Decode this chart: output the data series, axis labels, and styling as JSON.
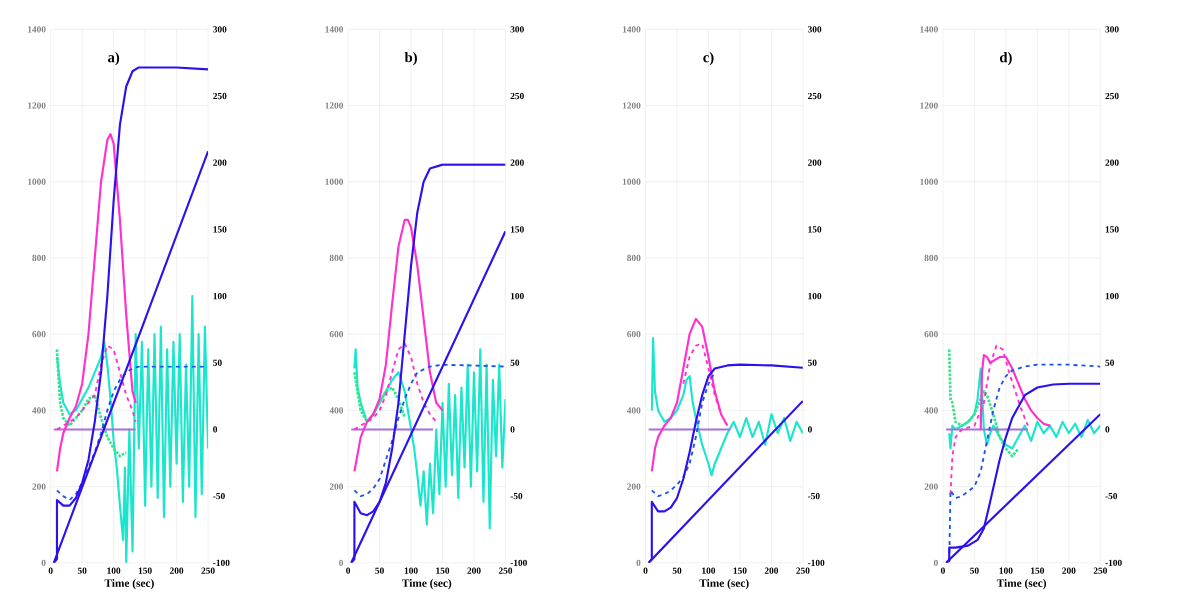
{
  "chart_data": [
    {
      "type": "line",
      "title": "a)",
      "xlabel": "Time (sec)",
      "xlim": [
        0,
        250
      ],
      "xticks": [
        0,
        50,
        100,
        150,
        200,
        250
      ],
      "ylim": [
        0,
        1400
      ],
      "yticks": [
        0,
        200,
        400,
        600,
        800,
        1000,
        1200,
        1400
      ],
      "y2lim": [
        -100,
        300
      ],
      "y2ticks": [
        -100,
        -50,
        0,
        50,
        100,
        150,
        200,
        250,
        300
      ],
      "grid": true,
      "series": [
        {
          "color": "#19e6cc",
          "line_style": "solid",
          "x": [
            10,
            15,
            20,
            30,
            40,
            50,
            60,
            70,
            80,
            85,
            90,
            95,
            100,
            105,
            110,
            115,
            118,
            120,
            125,
            130,
            135,
            140,
            145,
            150,
            155,
            160,
            165,
            170,
            175,
            180,
            185,
            190,
            195,
            200,
            205,
            210,
            215,
            220,
            225,
            230,
            235,
            240,
            245,
            250
          ],
          "values": [
            540,
            470,
            420,
            390,
            400,
            430,
            460,
            500,
            540,
            580,
            520,
            430,
            320,
            250,
            150,
            60,
            250,
            0,
            350,
            30,
            600,
            300,
            580,
            150,
            560,
            200,
            600,
            170,
            620,
            120,
            560,
            200,
            580,
            260,
            600,
            160,
            520,
            200,
            700,
            120,
            600,
            180,
            620,
            300
          ]
        },
        {
          "color": "#2ee88a",
          "line_style": "dotted",
          "x": [
            10,
            12,
            15,
            20,
            30,
            40,
            50,
            60,
            70,
            80,
            90,
            100,
            110,
            120
          ],
          "values": [
            560,
            500,
            420,
            380,
            360,
            380,
            400,
            430,
            440,
            380,
            330,
            300,
            280,
            290
          ]
        },
        {
          "color": "#a76ee0",
          "line_style": "solid",
          "x": [
            5,
            135
          ],
          "values": [
            350,
            350
          ]
        },
        {
          "color": "#ff2fd0",
          "line_style": "dashed",
          "x": [
            10,
            20,
            30,
            40,
            50,
            60,
            70,
            80,
            90,
            100,
            110,
            120,
            130,
            135
          ],
          "values": [
            350,
            360,
            370,
            380,
            400,
            420,
            440,
            520,
            570,
            560,
            500,
            440,
            400,
            370
          ]
        },
        {
          "color": "#ff2fd0",
          "line_style": "solid",
          "x": [
            10,
            15,
            20,
            30,
            40,
            50,
            60,
            70,
            80,
            90,
            95,
            100,
            110,
            120,
            130,
            135
          ],
          "values": [
            240,
            300,
            340,
            380,
            410,
            470,
            600,
            800,
            1000,
            1110,
            1125,
            1100,
            900,
            650,
            450,
            420
          ]
        },
        {
          "color": "#1a55e8",
          "line_style": "dashed",
          "x": [
            10,
            20,
            30,
            40,
            50,
            60,
            70,
            80,
            90,
            100,
            110,
            120,
            130,
            140,
            150,
            200,
            250
          ],
          "values": [
            190,
            175,
            165,
            180,
            210,
            250,
            290,
            340,
            400,
            450,
            480,
            500,
            510,
            515,
            515,
            515,
            515
          ]
        },
        {
          "color": "#2b10f0",
          "line_style": "solid",
          "x": [
            5,
            250
          ],
          "values": [
            0,
            1080
          ]
        },
        {
          "color": "#2b10f0",
          "line_style": "solid",
          "x": [
            5,
            10,
            10,
            20,
            30,
            40,
            50,
            60,
            70,
            80,
            90,
            100,
            110,
            120,
            130,
            140,
            150,
            175,
            200,
            250
          ],
          "values": [
            0,
            10,
            165,
            150,
            150,
            170,
            210,
            270,
            370,
            500,
            700,
            950,
            1150,
            1250,
            1290,
            1300,
            1300,
            1300,
            1300,
            1295
          ]
        }
      ]
    },
    {
      "type": "line",
      "title": "b)",
      "xlabel": "Time (sec)",
      "xlim": [
        0,
        250
      ],
      "xticks": [
        0,
        50,
        100,
        150,
        200,
        250
      ],
      "ylim": [
        0,
        1400
      ],
      "yticks": [
        0,
        200,
        400,
        600,
        800,
        1000,
        1200,
        1400
      ],
      "y2lim": [
        -100,
        300
      ],
      "y2ticks": [
        -100,
        -50,
        0,
        50,
        100,
        150,
        200,
        250,
        300
      ],
      "grid": true,
      "series": [
        {
          "color": "#19e6cc",
          "line_style": "solid",
          "x": [
            10,
            12,
            15,
            20,
            30,
            40,
            50,
            60,
            70,
            80,
            90,
            100,
            105,
            110,
            115,
            120,
            125,
            130,
            135,
            140,
            145,
            150,
            155,
            160,
            165,
            170,
            175,
            180,
            185,
            190,
            195,
            200,
            205,
            210,
            215,
            220,
            225,
            230,
            235,
            240,
            245,
            250
          ],
          "values": [
            510,
            560,
            460,
            420,
            370,
            390,
            420,
            450,
            480,
            500,
            450,
            350,
            300,
            230,
            150,
            240,
            100,
            260,
            130,
            350,
            180,
            420,
            200,
            470,
            230,
            440,
            170,
            460,
            250,
            520,
            200,
            500,
            240,
            560,
            160,
            520,
            90,
            480,
            280,
            520,
            250,
            430
          ]
        },
        {
          "color": "#2ee88a",
          "line_style": "dotted",
          "x": [
            10,
            15,
            20,
            30,
            40,
            50,
            60,
            70,
            80,
            90
          ],
          "values": [
            500,
            450,
            400,
            370,
            390,
            420,
            450,
            460,
            430,
            380
          ]
        },
        {
          "color": "#a76ee0",
          "line_style": "solid",
          "x": [
            5,
            135
          ],
          "values": [
            350,
            350
          ]
        },
        {
          "color": "#ff2fd0",
          "line_style": "dashed",
          "x": [
            10,
            20,
            30,
            40,
            50,
            60,
            70,
            80,
            90,
            100,
            110,
            120,
            130,
            140
          ],
          "values": [
            350,
            360,
            370,
            380,
            400,
            440,
            500,
            560,
            575,
            540,
            470,
            420,
            390,
            370
          ]
        },
        {
          "color": "#ff2fd0",
          "line_style": "solid",
          "x": [
            10,
            20,
            30,
            40,
            50,
            60,
            70,
            80,
            90,
            95,
            100,
            110,
            120,
            130,
            140,
            150
          ],
          "values": [
            240,
            330,
            370,
            390,
            430,
            520,
            680,
            830,
            900,
            900,
            880,
            780,
            640,
            500,
            420,
            400
          ]
        },
        {
          "color": "#1a55e8",
          "line_style": "dashed",
          "x": [
            10,
            20,
            30,
            40,
            50,
            60,
            70,
            80,
            90,
            100,
            110,
            130,
            150,
            250
          ],
          "values": [
            190,
            175,
            180,
            195,
            220,
            270,
            320,
            380,
            430,
            470,
            500,
            515,
            520,
            515
          ]
        },
        {
          "color": "#2b10f0",
          "line_style": "solid",
          "x": [
            5,
            250
          ],
          "values": [
            0,
            870
          ]
        },
        {
          "color": "#2b10f0",
          "line_style": "solid",
          "x": [
            5,
            10,
            10,
            20,
            30,
            40,
            50,
            60,
            70,
            80,
            90,
            100,
            110,
            120,
            130,
            150,
            200,
            250
          ],
          "values": [
            0,
            10,
            160,
            130,
            125,
            135,
            160,
            210,
            300,
            420,
            600,
            780,
            920,
            1000,
            1035,
            1045,
            1045,
            1045
          ]
        }
      ]
    },
    {
      "type": "line",
      "title": "c)",
      "xlabel": "Time (sec)",
      "xlim": [
        0,
        250
      ],
      "xticks": [
        0,
        50,
        100,
        150,
        200,
        250
      ],
      "ylim": [
        0,
        1400
      ],
      "yticks": [
        0,
        200,
        400,
        600,
        800,
        1000,
        1200,
        1400
      ],
      "y2lim": [
        -100,
        300
      ],
      "y2ticks": [
        -100,
        -50,
        0,
        50,
        100,
        150,
        200,
        250,
        300
      ],
      "grid": true,
      "series": [
        {
          "color": "#19e6cc",
          "line_style": "solid",
          "x": [
            10,
            12,
            15,
            20,
            30,
            40,
            50,
            60,
            65,
            70,
            75,
            80,
            90,
            100,
            105,
            110,
            120,
            130,
            140,
            150,
            160,
            170,
            180,
            190,
            200,
            210,
            220,
            230,
            240,
            250
          ],
          "values": [
            400,
            590,
            450,
            400,
            370,
            380,
            400,
            440,
            480,
            490,
            420,
            380,
            310,
            260,
            230,
            260,
            300,
            340,
            370,
            330,
            380,
            330,
            370,
            310,
            390,
            340,
            380,
            320,
            370,
            340
          ]
        },
        {
          "color": "#a76ee0",
          "line_style": "solid",
          "x": [
            5,
            135
          ],
          "values": [
            350,
            350
          ]
        },
        {
          "color": "#ff2fd0",
          "line_style": "dashed",
          "x": [
            60,
            70,
            80,
            90,
            100,
            110,
            120
          ],
          "values": [
            470,
            540,
            570,
            575,
            510,
            440,
            390
          ]
        },
        {
          "color": "#ff2fd0",
          "line_style": "solid",
          "x": [
            10,
            15,
            20,
            30,
            40,
            50,
            60,
            70,
            80,
            90,
            100,
            110,
            120,
            130
          ],
          "values": [
            240,
            300,
            330,
            360,
            380,
            420,
            510,
            600,
            640,
            620,
            540,
            450,
            390,
            360
          ]
        },
        {
          "color": "#1a55e8",
          "line_style": "dashed",
          "x": [
            10,
            20,
            30,
            40,
            50,
            60,
            70,
            80,
            90,
            100,
            110
          ],
          "values": [
            190,
            175,
            180,
            190,
            205,
            225,
            260,
            330,
            420,
            470,
            500
          ]
        },
        {
          "color": "#2b10f0",
          "line_style": "solid",
          "x": [
            5,
            250
          ],
          "values": [
            0,
            425
          ]
        },
        {
          "color": "#2b10f0",
          "line_style": "solid",
          "x": [
            5,
            10,
            10,
            20,
            30,
            40,
            50,
            60,
            70,
            80,
            90,
            100,
            110,
            130,
            150,
            200,
            250
          ],
          "values": [
            0,
            10,
            160,
            135,
            135,
            145,
            170,
            220,
            290,
            370,
            440,
            490,
            510,
            518,
            520,
            518,
            512
          ]
        }
      ]
    },
    {
      "type": "line",
      "title": "d)",
      "xlabel": "Time (sec)",
      "xlim": [
        0,
        250
      ],
      "xticks": [
        0,
        50,
        100,
        150,
        200,
        250
      ],
      "ylim": [
        0,
        1400
      ],
      "yticks": [
        0,
        200,
        400,
        600,
        800,
        1000,
        1200,
        1400
      ],
      "y2lim": [
        -100,
        300
      ],
      "y2ticks": [
        -100,
        -50,
        0,
        50,
        100,
        150,
        200,
        250,
        300
      ],
      "grid": true,
      "series": [
        {
          "color": "#19e6cc",
          "line_style": "solid",
          "x": [
            10,
            12,
            15,
            20,
            30,
            40,
            50,
            55,
            60,
            63,
            65,
            70,
            75,
            80,
            90,
            100,
            110,
            120,
            130,
            140,
            150,
            160,
            170,
            180,
            190,
            200,
            210,
            220,
            230,
            240,
            250
          ],
          "values": [
            340,
            300,
            360,
            350,
            360,
            370,
            390,
            430,
            510,
            420,
            350,
            310,
            340,
            360,
            330,
            310,
            300,
            330,
            360,
            320,
            370,
            340,
            360,
            330,
            370,
            340,
            365,
            330,
            375,
            340,
            360
          ]
        },
        {
          "color": "#2ee88a",
          "line_style": "dotted",
          "x": [
            10,
            12,
            15,
            20,
            30,
            40,
            50,
            60,
            65,
            70,
            80,
            90,
            100,
            110,
            120
          ],
          "values": [
            560,
            430,
            420,
            370,
            360,
            370,
            390,
            430,
            450,
            440,
            390,
            330,
            300,
            280,
            300
          ]
        },
        {
          "color": "#a76ee0",
          "line_style": "solid",
          "x": [
            5,
            135
          ],
          "values": [
            350,
            350
          ]
        },
        {
          "color": "#ff2fd0",
          "line_style": "dashed",
          "x": [
            12,
            15,
            20,
            30,
            50,
            65,
            75,
            85,
            95,
            105,
            115,
            125,
            135
          ],
          "values": [
            180,
            280,
            330,
            350,
            360,
            420,
            520,
            570,
            560,
            500,
            450,
            400,
            360
          ]
        },
        {
          "color": "#ff2fd0",
          "line_style": "solid",
          "x": [
            60,
            62,
            65,
            70,
            75,
            90,
            100,
            110,
            120,
            130,
            140,
            150,
            160,
            170
          ],
          "values": [
            350,
            500,
            545,
            540,
            525,
            540,
            540,
            510,
            470,
            430,
            400,
            380,
            365,
            360
          ]
        },
        {
          "color": "#1a55e8",
          "line_style": "dashed",
          "x": [
            10,
            12,
            20,
            30,
            50,
            60,
            70,
            80,
            90,
            100,
            110,
            130,
            150,
            200,
            250
          ],
          "values": [
            5,
            190,
            170,
            175,
            200,
            240,
            320,
            400,
            460,
            490,
            505,
            515,
            520,
            520,
            515
          ]
        },
        {
          "color": "#2b10f0",
          "line_style": "solid",
          "x": [
            5,
            250
          ],
          "values": [
            0,
            390
          ]
        },
        {
          "color": "#2b10f0",
          "line_style": "solid",
          "x": [
            5,
            10,
            10,
            20,
            40,
            55,
            65,
            75,
            90,
            100,
            110,
            130,
            150,
            175,
            200,
            250
          ],
          "values": [
            0,
            5,
            40,
            40,
            45,
            60,
            90,
            160,
            270,
            330,
            380,
            440,
            460,
            468,
            470,
            470
          ]
        }
      ]
    }
  ]
}
